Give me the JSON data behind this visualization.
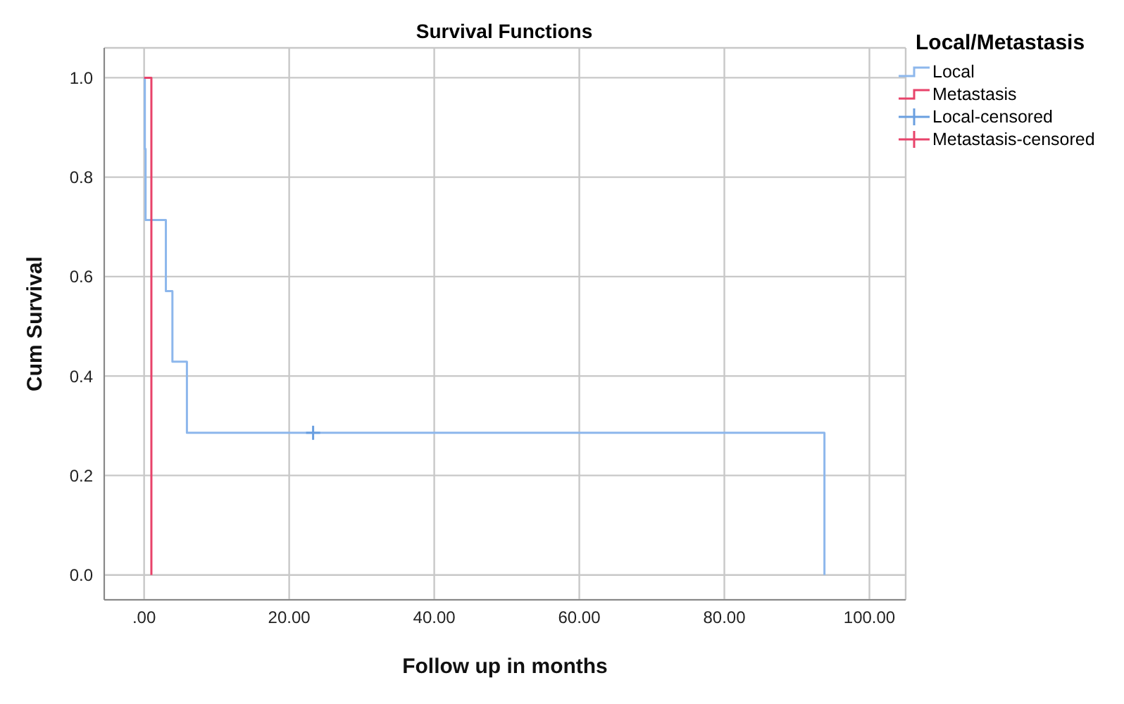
{
  "chart_data": {
    "type": "step",
    "title": "Survival Functions",
    "xlabel": "Follow up in months",
    "ylabel": "Cum Survival",
    "legend_title": "Local/Metastasis",
    "series": [
      {
        "name": "Local",
        "color": "#8db7ec",
        "x": [
          0,
          0.1,
          0.2,
          3.0,
          3.9,
          5.9,
          93.8
        ],
        "values": [
          1,
          0.857,
          0.714,
          0.571,
          0.429,
          0.286,
          0
        ]
      },
      {
        "name": "Metastasis",
        "color": "#e8436a",
        "x": [
          0,
          1.0
        ],
        "values": [
          1,
          0
        ]
      },
      {
        "name": "Local-censored",
        "type": "scatter",
        "marker": "cross",
        "color": "#6a9fe0",
        "x": [
          23.3
        ],
        "values": [
          0.286
        ]
      },
      {
        "name": "Metastasis-censored",
        "type": "scatter",
        "marker": "cross",
        "color": "#e8436a"
      }
    ],
    "xlim": [
      -5.5,
      105
    ],
    "ylim": [
      -0.05,
      1.06
    ],
    "xticks": [
      {
        "value": 0,
        "label": ".00"
      },
      {
        "value": 20,
        "label": "20.00"
      },
      {
        "value": 40,
        "label": "40.00"
      },
      {
        "value": 60,
        "label": "60.00"
      },
      {
        "value": 80,
        "label": "80.00"
      },
      {
        "value": 100,
        "label": "100.00"
      }
    ],
    "yticks": [
      {
        "value": 0,
        "label": "0.0"
      },
      {
        "value": 0.2,
        "label": "0.2"
      },
      {
        "value": 0.4,
        "label": "0.4"
      },
      {
        "value": 0.6,
        "label": "0.6"
      },
      {
        "value": 0.8,
        "label": "0.8"
      },
      {
        "value": 1,
        "label": "1.0"
      }
    ],
    "grid": true,
    "legend": "right"
  }
}
